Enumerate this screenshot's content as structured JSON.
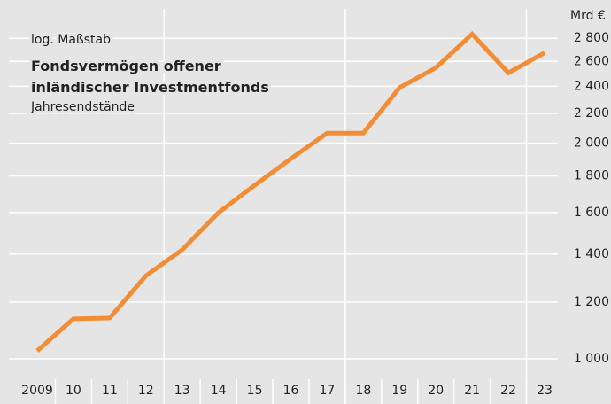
{
  "chart_data": {
    "type": "line",
    "title": "Fondsvermögen offener inländischer Investmentfonds",
    "subtitle": "Jahresendstände",
    "annotation": "log. Maßstab",
    "y_axis_label": "Mrd €",
    "log_scale": true,
    "grid": true,
    "categories": [
      "2009",
      "10",
      "11",
      "12",
      "13",
      "14",
      "15",
      "16",
      "17",
      "18",
      "19",
      "20",
      "21",
      "22",
      "23"
    ],
    "series": [
      {
        "name": "Fondsvermögen",
        "color": "#f28c35",
        "values": [
          1026,
          1137,
          1140,
          1306,
          1419,
          1599,
          1746,
          1902,
          2065,
          2065,
          2390,
          2547,
          2838,
          2506,
          2673
        ]
      }
    ],
    "ylim": [
      950,
      3000
    ],
    "yticks": [
      {
        "value": 1000,
        "label": "1 000"
      },
      {
        "value": 1200,
        "label": "1 200"
      },
      {
        "value": 1400,
        "label": "1 400"
      },
      {
        "value": 1600,
        "label": "1 600"
      },
      {
        "value": 1800,
        "label": "1 800"
      },
      {
        "value": 2000,
        "label": "2 000"
      },
      {
        "value": 2200,
        "label": "2 200"
      },
      {
        "value": 2400,
        "label": "2 400"
      },
      {
        "value": 2600,
        "label": "2 600"
      },
      {
        "value": 2800,
        "label": "2 800"
      }
    ]
  }
}
